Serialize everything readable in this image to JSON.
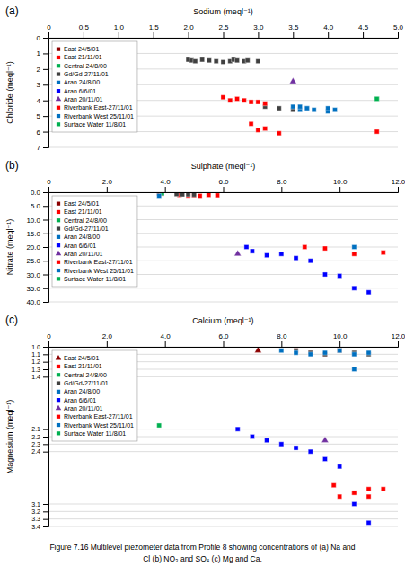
{
  "chart_data": [
    {
      "type": "scatter",
      "title": "(a)",
      "x_label": "Sodium (meql⁻¹)",
      "y_label": "Chloride (meql⁻¹)",
      "xlim": [
        0,
        5
      ],
      "ylim": [
        7,
        0
      ],
      "xticks": [
        0,
        0.5,
        {
          "value": 1,
          "label": "1.0"
        },
        1.5,
        {
          "value": 2,
          "label": "2.0"
        },
        2.5,
        {
          "value": 3,
          "label": "3.0"
        },
        3.5,
        {
          "value": 4,
          "label": "4.0"
        },
        4.5,
        {
          "value": 5,
          "label": "5.0"
        }
      ],
      "yticks": [
        0,
        1,
        2,
        3,
        4,
        5,
        6,
        7
      ],
      "grid": true,
      "legend": "upper left",
      "series": [
        {
          "name": "East 24/5/01",
          "color": "#8b0000",
          "marker": "square",
          "x": [],
          "values": []
        },
        {
          "name": "East 21/11/01",
          "color": "#ff0000",
          "marker": "square",
          "x": [
            2.9,
            3.0,
            3.1,
            3.3,
            4.7
          ],
          "values": [
            5.5,
            5.9,
            5.8,
            6.1,
            6.0
          ]
        },
        {
          "name": "Central 24/8/00",
          "color": "#00b050",
          "marker": "square",
          "x": [
            4.7
          ],
          "values": [
            3.9
          ]
        },
        {
          "name": "Gd/Gd-27/11/01",
          "color": "#404040",
          "marker": "square",
          "x": [
            2.0,
            2.05,
            2.1,
            2.2,
            2.3,
            2.4,
            2.5,
            2.6,
            2.65,
            2.7,
            2.8,
            2.85,
            3.0,
            3.1,
            3.3,
            3.5
          ],
          "values": [
            1.4,
            1.45,
            1.5,
            1.4,
            1.45,
            1.5,
            1.55,
            1.5,
            1.4,
            1.45,
            1.5,
            1.45,
            1.5,
            4.4,
            4.5,
            4.6
          ]
        },
        {
          "name": "Aran 24/8/00",
          "color": "#0070c0",
          "marker": "square",
          "x": [
            3.5,
            3.6,
            3.7,
            4.0
          ],
          "values": [
            4.4,
            4.6,
            4.5,
            4.7
          ]
        },
        {
          "name": "Aran 6/6/01",
          "color": "#0000ff",
          "marker": "square",
          "x": [],
          "values": []
        },
        {
          "name": "Aran 20/11/01",
          "color": "#7030a0",
          "marker": "triangle",
          "x": [
            3.5
          ],
          "values": [
            2.8
          ]
        },
        {
          "name": "Riverbank East-27/11/01",
          "color": "#ff0000",
          "marker": "square",
          "x": [
            2.5,
            2.6,
            2.7,
            2.8,
            2.9,
            3.0,
            3.1
          ],
          "values": [
            3.8,
            4.0,
            3.9,
            4.0,
            4.1,
            4.1,
            4.2
          ]
        },
        {
          "name": "Riverbank West 25/11/01",
          "color": "#0070c0",
          "marker": "square",
          "x": [
            3.6,
            3.7,
            3.8,
            4.0,
            4.1
          ],
          "values": [
            4.4,
            4.5,
            4.6,
            4.5,
            4.6
          ]
        },
        {
          "name": "Surface Water 11/8/01",
          "color": "#00b050",
          "marker": "square",
          "x": [
            4.7
          ],
          "values": [
            3.9
          ]
        }
      ]
    },
    {
      "type": "scatter",
      "title": "(b)",
      "x_label": "Sulphate (meql⁻¹)",
      "y_label": "Nitrate (meql⁻¹)",
      "xlim": [
        0,
        12
      ],
      "ylim": [
        40,
        0
      ],
      "xticks": [
        0,
        {
          "value": 2,
          "label": "2.0"
        },
        {
          "value": 4,
          "label": "4.0"
        },
        {
          "value": 6,
          "label": "6.0"
        },
        {
          "value": 8,
          "label": "8.0"
        },
        {
          "value": 10,
          "label": "10.0"
        },
        {
          "value": 12,
          "label": "12.0"
        }
      ],
      "yticks": [
        {
          "value": 0,
          "label": "0.0"
        },
        {
          "value": 5,
          "label": "5.0"
        },
        {
          "value": 10,
          "label": "10.0"
        },
        {
          "value": 15,
          "label": "15.0"
        },
        {
          "value": 20,
          "label": "20.0"
        },
        {
          "value": 25,
          "label": "25.0"
        },
        {
          "value": 30,
          "label": "30.0"
        },
        {
          "value": 35,
          "label": "35.0"
        },
        {
          "value": 40,
          "label": "40.0"
        }
      ],
      "grid": true,
      "legend": "upper left",
      "series": [
        {
          "name": "East 24/5/01",
          "color": "#8b0000",
          "marker": "square",
          "x": [
            3.8,
            3.9
          ],
          "values": [
            0.4,
            0.5
          ]
        },
        {
          "name": "East 21/11/01",
          "color": "#ff0000",
          "marker": "square",
          "x": [
            4.5,
            4.8,
            5.0,
            5.2,
            5.5,
            5.8
          ],
          "values": [
            1.0,
            1.2,
            1.1,
            1.3,
            1.0,
            1.1
          ]
        },
        {
          "name": "Central 24/8/00",
          "color": "#00b050",
          "marker": "square",
          "x": [
            3.9
          ],
          "values": [
            0.4
          ]
        },
        {
          "name": "Gd/Gd-27/11/01",
          "color": "#404040",
          "marker": "square",
          "x": [
            4.4,
            4.6,
            4.8,
            5.0
          ],
          "values": [
            0.7,
            0.8,
            0.8,
            0.9
          ]
        },
        {
          "name": "Aran 24/8/00",
          "color": "#0070c0",
          "marker": "square",
          "x": [
            3.8
          ],
          "values": [
            1.3
          ]
        },
        {
          "name": "Aran 6/6/01",
          "color": "#0000ff",
          "marker": "square",
          "x": [
            6.8,
            7.0,
            7.5,
            8.0,
            8.5,
            9.0,
            9.5,
            10.0,
            10.5,
            11.0
          ],
          "values": [
            20.0,
            21.5,
            23.0,
            22.5,
            24.0,
            25.0,
            30.0,
            30.5,
            35.0,
            36.5
          ]
        },
        {
          "name": "Aran 20/11/01",
          "color": "#7030a0",
          "marker": "triangle",
          "x": [
            6.5
          ],
          "values": [
            22.5
          ]
        },
        {
          "name": "Riverbank East-27/11/01",
          "color": "#ff0000",
          "marker": "square",
          "x": [
            8.8,
            9.5,
            10.5,
            11.5
          ],
          "values": [
            20.0,
            20.5,
            22.5,
            22.0
          ]
        },
        {
          "name": "Riverbank West 25/11/01",
          "color": "#0070c0",
          "marker": "square",
          "x": [
            10.5
          ],
          "values": [
            20.0
          ]
        },
        {
          "name": "Surface Water 11/8/01",
          "color": "#00b050",
          "marker": "square",
          "x": [],
          "values": []
        }
      ]
    },
    {
      "type": "scatter",
      "title": "(c)",
      "x_label": "Calcium (meql⁻¹)",
      "y_label": "Magnesium (meql⁻¹)",
      "xlim": [
        0,
        12
      ],
      "ylim": [
        3.4,
        1.0
      ],
      "xticks": [
        0,
        {
          "value": 2,
          "label": "2.0"
        },
        {
          "value": 4,
          "label": "4.0"
        },
        {
          "value": 6,
          "label": "6.0"
        },
        {
          "value": 8,
          "label": "8.0"
        },
        {
          "value": 10,
          "label": "10.0"
        },
        {
          "value": 12,
          "label": "12.0"
        }
      ],
      "yticks": [
        {
          "value": 1,
          "label": "1.0"
        },
        1.1,
        1.2,
        1.3,
        1.4,
        2.1,
        2.2,
        2.3,
        2.4,
        3.1,
        3.2,
        3.3,
        3.4
      ],
      "grid": true,
      "legend": "upper left",
      "annotations": [
        "Figure 7.16 Multilevel piezometer data from Profile 8 showing concentrations of (a) Na and",
        "Cl (b) NO₃ and SO₄ (c) Mg and Ca."
      ],
      "series": [
        {
          "name": "East 24/5/01",
          "color": "#8b0000",
          "marker": "triangle",
          "x": [
            7.2
          ],
          "values": [
            1.05
          ]
        },
        {
          "name": "East 21/11/01",
          "color": "#ff0000",
          "marker": "square",
          "x": [
            8.5,
            9.0,
            9.5,
            10.0,
            10.5,
            11.0,
            11.5
          ],
          "values": [
            1.05,
            1.08,
            1.1,
            1.05,
            2.95,
            3.0,
            2.9
          ]
        },
        {
          "name": "Central 24/8/00",
          "color": "#00b050",
          "marker": "square",
          "x": [
            3.8
          ],
          "values": [
            2.05
          ]
        },
        {
          "name": "Gd/Gd-27/11/01",
          "color": "#404040",
          "marker": "square",
          "x": [
            8.5,
            9.0,
            9.5,
            10.0,
            10.5,
            11.0
          ],
          "values": [
            1.05,
            1.08,
            1.1,
            1.05,
            1.08,
            1.1
          ]
        },
        {
          "name": "Aran 24/8/00",
          "color": "#0070c0",
          "marker": "square",
          "x": [
            8.0,
            8.5,
            9.0,
            9.5,
            10.0,
            10.5,
            11.0
          ],
          "values": [
            1.05,
            1.08,
            1.1,
            1.08,
            1.05,
            1.1,
            1.08
          ]
        },
        {
          "name": "Aran 6/6/01",
          "color": "#0000ff",
          "marker": "square",
          "x": [
            6.5,
            7.0,
            7.5,
            8.0,
            8.5,
            9.0,
            9.5,
            10.0,
            10.5,
            11.0
          ],
          "values": [
            2.1,
            2.2,
            2.25,
            2.3,
            2.35,
            2.4,
            2.5,
            2.6,
            3.1,
            3.35
          ]
        },
        {
          "name": "Aran 20/11/01",
          "color": "#7030a0",
          "marker": "triangle",
          "x": [
            9.5
          ],
          "values": [
            2.25
          ]
        },
        {
          "name": "Riverbank East-27/11/01",
          "color": "#ff0000",
          "marker": "square",
          "x": [
            9.8,
            10.0,
            10.5,
            11.0
          ],
          "values": [
            2.85,
            3.0,
            2.95,
            2.9
          ]
        },
        {
          "name": "Riverbank West 25/11/01",
          "color": "#0070c0",
          "marker": "square",
          "x": [
            10.5
          ],
          "values": [
            1.3
          ]
        },
        {
          "name": "Surface Water 11/8/01",
          "color": "#00b050",
          "marker": "square",
          "x": [],
          "values": []
        }
      ]
    }
  ]
}
